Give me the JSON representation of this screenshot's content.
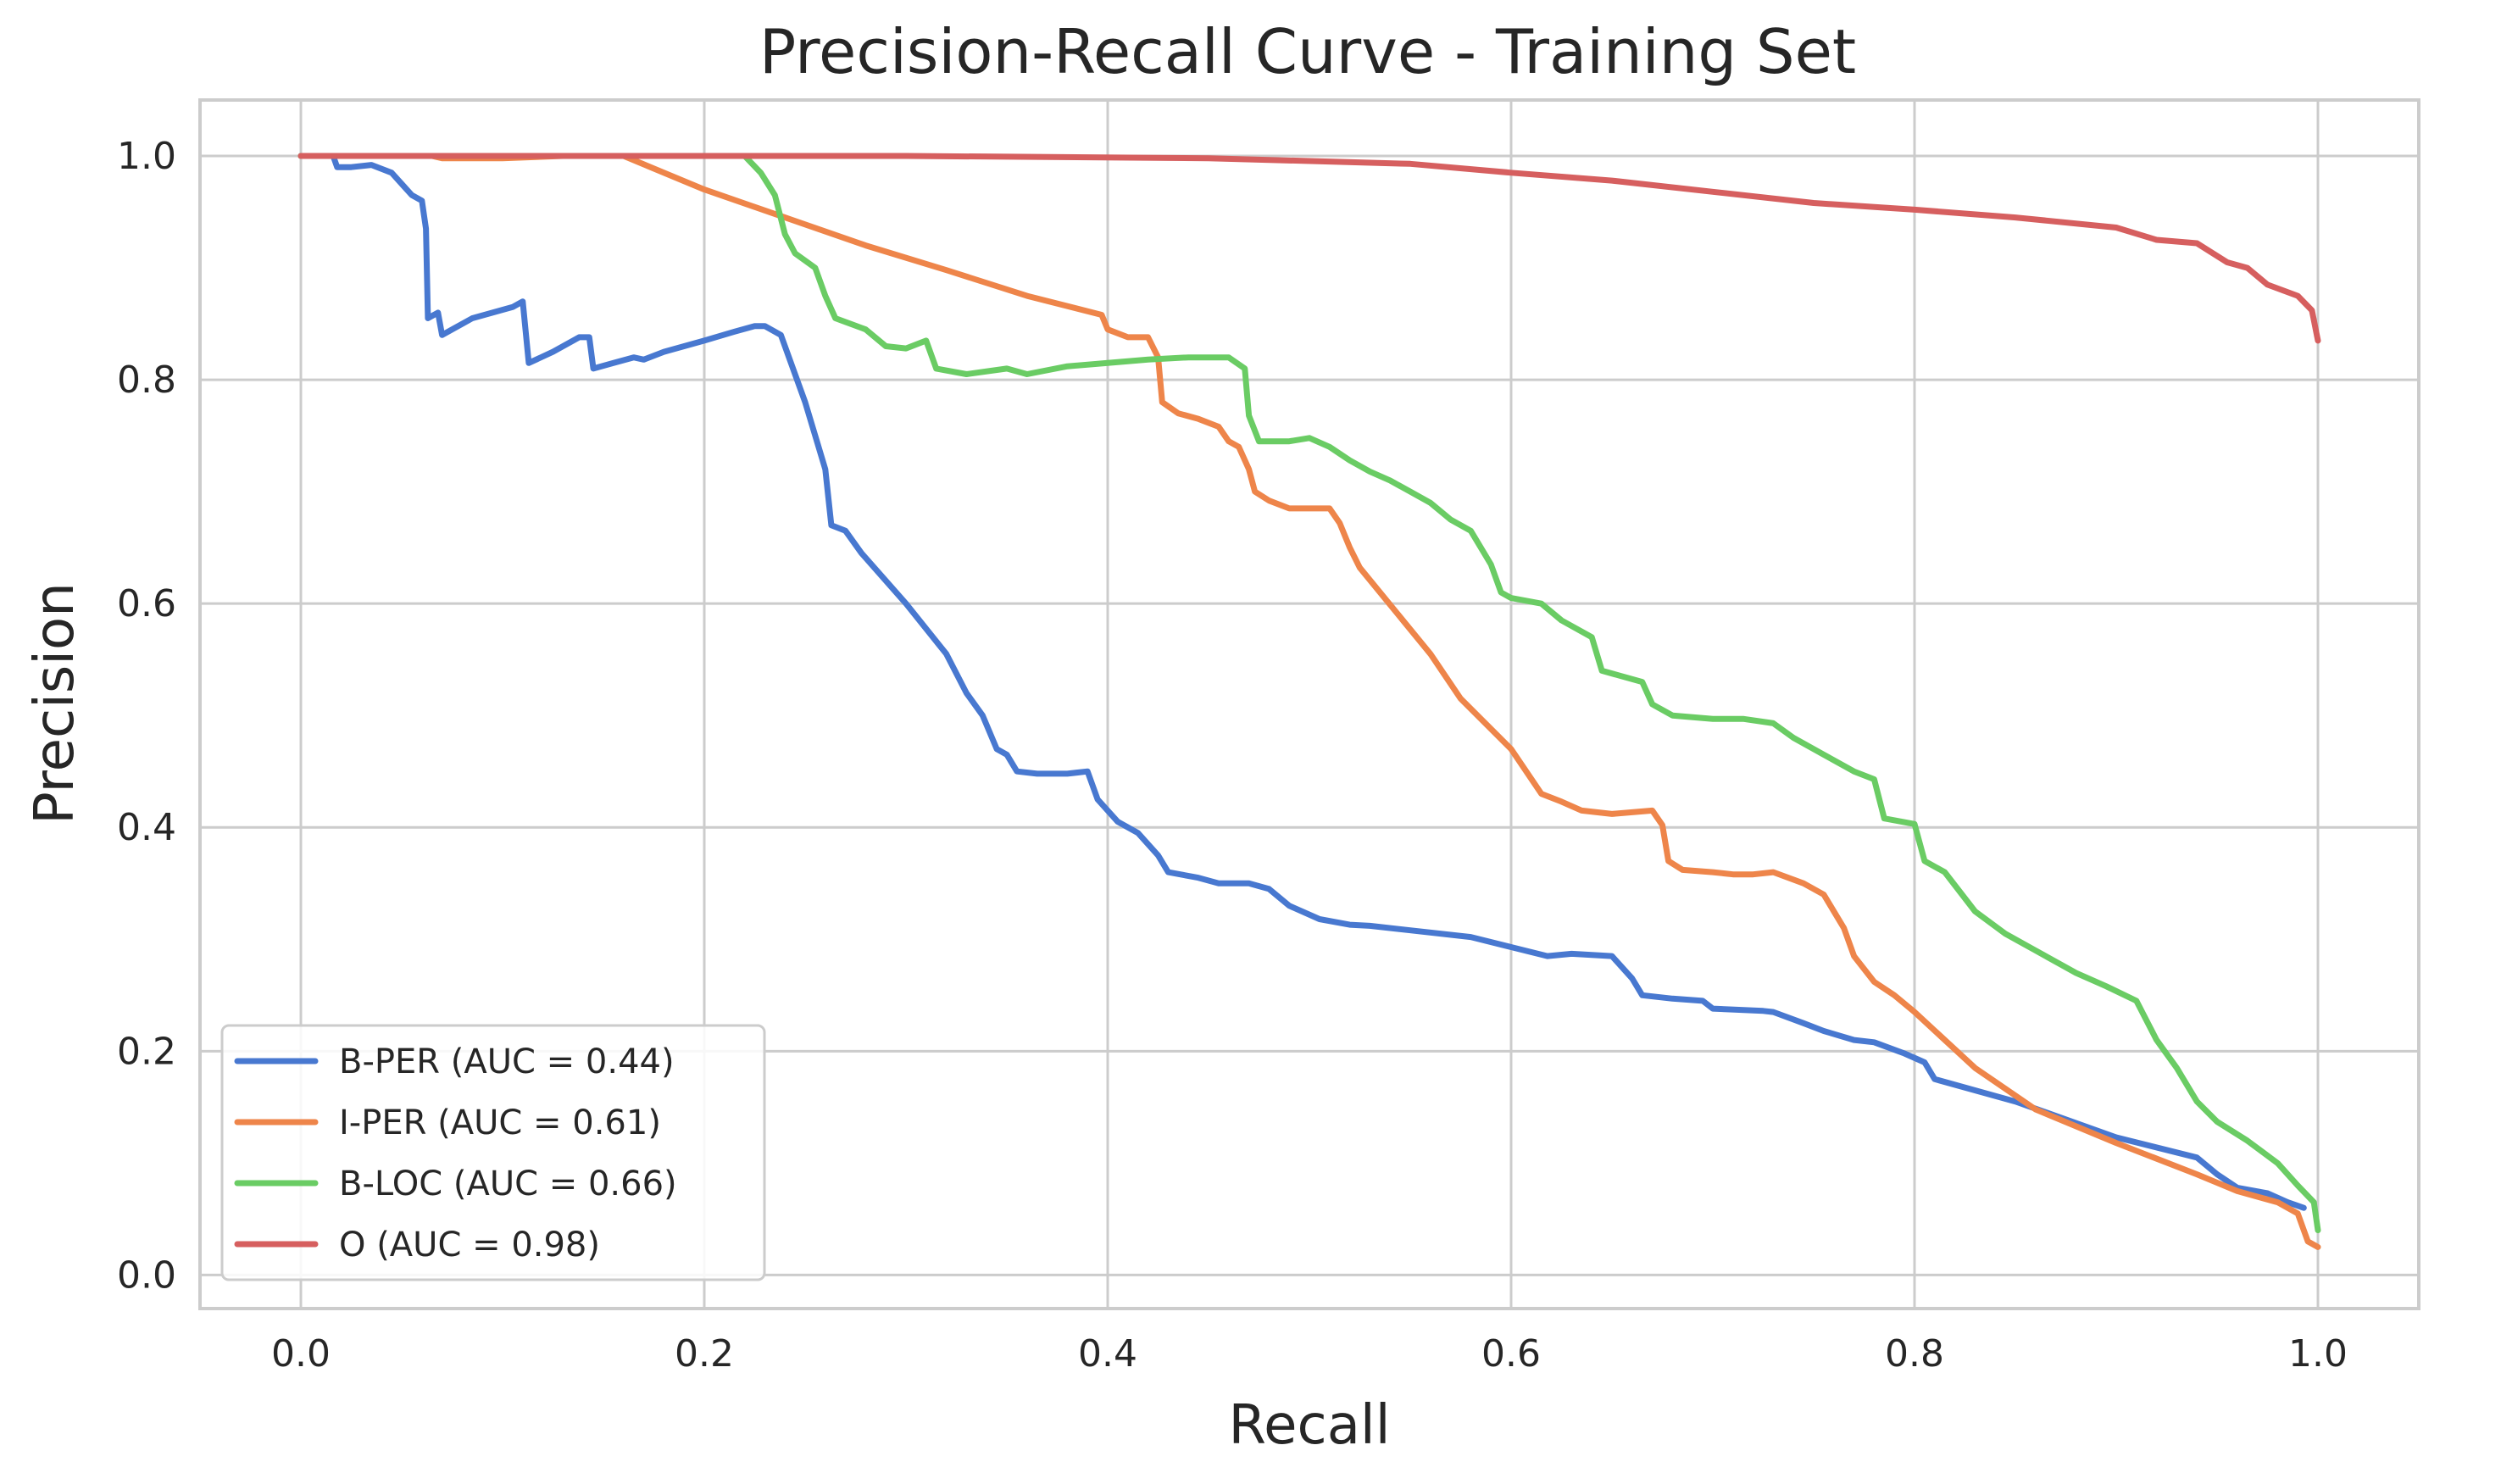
{
  "chart_data": {
    "type": "line",
    "title": "Precision-Recall Curve - Training Set",
    "xlabel": "Recall",
    "ylabel": "Precision",
    "xlim": [
      -0.05,
      1.05
    ],
    "ylim": [
      -0.03,
      1.05
    ],
    "xticks": [
      0.0,
      0.2,
      0.4,
      0.6,
      0.8,
      1.0
    ],
    "xtick_labels": [
      "0.0",
      "0.2",
      "0.4",
      "0.6",
      "0.8",
      "1.0"
    ],
    "yticks": [
      0.0,
      0.2,
      0.4,
      0.6,
      0.8,
      1.0
    ],
    "ytick_labels": [
      "0.0",
      "0.2",
      "0.4",
      "0.6",
      "0.8",
      "1.0"
    ],
    "grid": true,
    "legend_position": "lower-left",
    "series": [
      {
        "name": "B-PER (AUC = 0.44)",
        "color": "#4878d0",
        "points": [
          [
            0.0,
            1.0
          ],
          [
            0.016,
            1.0
          ],
          [
            0.018,
            0.99
          ],
          [
            0.025,
            0.99
          ],
          [
            0.035,
            0.992
          ],
          [
            0.045,
            0.985
          ],
          [
            0.05,
            0.975
          ],
          [
            0.055,
            0.965
          ],
          [
            0.06,
            0.96
          ],
          [
            0.062,
            0.935
          ],
          [
            0.063,
            0.855
          ],
          [
            0.068,
            0.86
          ],
          [
            0.07,
            0.84
          ],
          [
            0.075,
            0.845
          ],
          [
            0.085,
            0.855
          ],
          [
            0.095,
            0.86
          ],
          [
            0.105,
            0.865
          ],
          [
            0.11,
            0.87
          ],
          [
            0.113,
            0.815
          ],
          [
            0.125,
            0.825
          ],
          [
            0.138,
            0.838
          ],
          [
            0.143,
            0.838
          ],
          [
            0.145,
            0.81
          ],
          [
            0.155,
            0.815
          ],
          [
            0.165,
            0.82
          ],
          [
            0.17,
            0.818
          ],
          [
            0.18,
            0.825
          ],
          [
            0.2,
            0.835
          ],
          [
            0.215,
            0.843
          ],
          [
            0.225,
            0.848
          ],
          [
            0.23,
            0.848
          ],
          [
            0.238,
            0.84
          ],
          [
            0.25,
            0.78
          ],
          [
            0.26,
            0.72
          ],
          [
            0.263,
            0.67
          ],
          [
            0.27,
            0.665
          ],
          [
            0.278,
            0.645
          ],
          [
            0.3,
            0.6
          ],
          [
            0.32,
            0.555
          ],
          [
            0.33,
            0.52
          ],
          [
            0.338,
            0.5
          ],
          [
            0.345,
            0.47
          ],
          [
            0.35,
            0.465
          ],
          [
            0.355,
            0.45
          ],
          [
            0.365,
            0.448
          ],
          [
            0.38,
            0.448
          ],
          [
            0.39,
            0.45
          ],
          [
            0.395,
            0.425
          ],
          [
            0.405,
            0.405
          ],
          [
            0.415,
            0.395
          ],
          [
            0.425,
            0.375
          ],
          [
            0.43,
            0.36
          ],
          [
            0.445,
            0.355
          ],
          [
            0.455,
            0.35
          ],
          [
            0.47,
            0.35
          ],
          [
            0.48,
            0.345
          ],
          [
            0.49,
            0.33
          ],
          [
            0.505,
            0.318
          ],
          [
            0.52,
            0.313
          ],
          [
            0.53,
            0.312
          ],
          [
            0.55,
            0.308
          ],
          [
            0.58,
            0.302
          ],
          [
            0.6,
            0.293
          ],
          [
            0.618,
            0.285
          ],
          [
            0.63,
            0.287
          ],
          [
            0.65,
            0.285
          ],
          [
            0.66,
            0.265
          ],
          [
            0.665,
            0.25
          ],
          [
            0.68,
            0.247
          ],
          [
            0.695,
            0.245
          ],
          [
            0.7,
            0.238
          ],
          [
            0.725,
            0.236
          ],
          [
            0.73,
            0.235
          ],
          [
            0.745,
            0.225
          ],
          [
            0.755,
            0.218
          ],
          [
            0.77,
            0.21
          ],
          [
            0.78,
            0.208
          ],
          [
            0.795,
            0.198
          ],
          [
            0.805,
            0.19
          ],
          [
            0.81,
            0.175
          ],
          [
            0.85,
            0.155
          ],
          [
            0.9,
            0.123
          ],
          [
            0.94,
            0.105
          ],
          [
            0.95,
            0.09
          ],
          [
            0.96,
            0.078
          ],
          [
            0.975,
            0.073
          ],
          [
            0.985,
            0.065
          ],
          [
            0.993,
            0.06
          ]
        ]
      },
      {
        "name": "I-PER (AUC = 0.61)",
        "color": "#ee854a",
        "points": [
          [
            0.0,
            1.0
          ],
          [
            0.065,
            1.0
          ],
          [
            0.07,
            0.998
          ],
          [
            0.1,
            0.998
          ],
          [
            0.13,
            1.0
          ],
          [
            0.16,
            1.0
          ],
          [
            0.2,
            0.97
          ],
          [
            0.24,
            0.945
          ],
          [
            0.28,
            0.92
          ],
          [
            0.32,
            0.898
          ],
          [
            0.36,
            0.875
          ],
          [
            0.397,
            0.858
          ],
          [
            0.4,
            0.845
          ],
          [
            0.41,
            0.838
          ],
          [
            0.42,
            0.838
          ],
          [
            0.425,
            0.82
          ],
          [
            0.427,
            0.78
          ],
          [
            0.435,
            0.77
          ],
          [
            0.445,
            0.765
          ],
          [
            0.455,
            0.758
          ],
          [
            0.46,
            0.745
          ],
          [
            0.465,
            0.74
          ],
          [
            0.47,
            0.72
          ],
          [
            0.473,
            0.7
          ],
          [
            0.48,
            0.692
          ],
          [
            0.49,
            0.685
          ],
          [
            0.5,
            0.685
          ],
          [
            0.51,
            0.685
          ],
          [
            0.515,
            0.672
          ],
          [
            0.52,
            0.65
          ],
          [
            0.525,
            0.632
          ],
          [
            0.56,
            0.555
          ],
          [
            0.575,
            0.515
          ],
          [
            0.6,
            0.47
          ],
          [
            0.615,
            0.43
          ],
          [
            0.625,
            0.423
          ],
          [
            0.635,
            0.415
          ],
          [
            0.65,
            0.412
          ],
          [
            0.67,
            0.415
          ],
          [
            0.675,
            0.402
          ],
          [
            0.678,
            0.37
          ],
          [
            0.685,
            0.362
          ],
          [
            0.7,
            0.36
          ],
          [
            0.71,
            0.358
          ],
          [
            0.72,
            0.358
          ],
          [
            0.73,
            0.36
          ],
          [
            0.745,
            0.35
          ],
          [
            0.755,
            0.34
          ],
          [
            0.765,
            0.31
          ],
          [
            0.77,
            0.285
          ],
          [
            0.78,
            0.262
          ],
          [
            0.79,
            0.25
          ],
          [
            0.8,
            0.235
          ],
          [
            0.83,
            0.185
          ],
          [
            0.86,
            0.148
          ],
          [
            0.9,
            0.118
          ],
          [
            0.94,
            0.09
          ],
          [
            0.96,
            0.075
          ],
          [
            0.98,
            0.065
          ],
          [
            0.99,
            0.055
          ],
          [
            0.995,
            0.03
          ],
          [
            1.0,
            0.025
          ]
        ]
      },
      {
        "name": "B-LOC (AUC = 0.66)",
        "color": "#6acc64",
        "points": [
          [
            0.0,
            1.0
          ],
          [
            0.2,
            1.0
          ],
          [
            0.22,
            1.0
          ],
          [
            0.228,
            0.985
          ],
          [
            0.235,
            0.965
          ],
          [
            0.24,
            0.93
          ],
          [
            0.245,
            0.913
          ],
          [
            0.255,
            0.9
          ],
          [
            0.26,
            0.875
          ],
          [
            0.265,
            0.855
          ],
          [
            0.28,
            0.845
          ],
          [
            0.29,
            0.83
          ],
          [
            0.3,
            0.828
          ],
          [
            0.31,
            0.835
          ],
          [
            0.315,
            0.81
          ],
          [
            0.33,
            0.805
          ],
          [
            0.35,
            0.81
          ],
          [
            0.36,
            0.805
          ],
          [
            0.38,
            0.812
          ],
          [
            0.4,
            0.815
          ],
          [
            0.42,
            0.818
          ],
          [
            0.44,
            0.82
          ],
          [
            0.46,
            0.82
          ],
          [
            0.468,
            0.81
          ],
          [
            0.47,
            0.768
          ],
          [
            0.475,
            0.745
          ],
          [
            0.49,
            0.745
          ],
          [
            0.5,
            0.748
          ],
          [
            0.51,
            0.74
          ],
          [
            0.52,
            0.728
          ],
          [
            0.53,
            0.718
          ],
          [
            0.54,
            0.71
          ],
          [
            0.55,
            0.7
          ],
          [
            0.56,
            0.69
          ],
          [
            0.57,
            0.675
          ],
          [
            0.58,
            0.665
          ],
          [
            0.59,
            0.635
          ],
          [
            0.595,
            0.61
          ],
          [
            0.6,
            0.605
          ],
          [
            0.615,
            0.6
          ],
          [
            0.625,
            0.585
          ],
          [
            0.64,
            0.57
          ],
          [
            0.645,
            0.54
          ],
          [
            0.655,
            0.535
          ],
          [
            0.665,
            0.53
          ],
          [
            0.67,
            0.51
          ],
          [
            0.68,
            0.5
          ],
          [
            0.7,
            0.497
          ],
          [
            0.715,
            0.497
          ],
          [
            0.73,
            0.493
          ],
          [
            0.74,
            0.48
          ],
          [
            0.755,
            0.465
          ],
          [
            0.77,
            0.45
          ],
          [
            0.78,
            0.443
          ],
          [
            0.785,
            0.408
          ],
          [
            0.8,
            0.403
          ],
          [
            0.805,
            0.37
          ],
          [
            0.815,
            0.36
          ],
          [
            0.83,
            0.325
          ],
          [
            0.845,
            0.305
          ],
          [
            0.86,
            0.29
          ],
          [
            0.88,
            0.27
          ],
          [
            0.895,
            0.258
          ],
          [
            0.91,
            0.245
          ],
          [
            0.92,
            0.21
          ],
          [
            0.93,
            0.185
          ],
          [
            0.94,
            0.155
          ],
          [
            0.95,
            0.137
          ],
          [
            0.965,
            0.12
          ],
          [
            0.98,
            0.1
          ],
          [
            0.99,
            0.08
          ],
          [
            0.998,
            0.065
          ],
          [
            1.0,
            0.04
          ]
        ]
      },
      {
        "name": "O (AUC = 0.98)",
        "color": "#d65f5f",
        "points": [
          [
            0.0,
            1.0
          ],
          [
            0.3,
            1.0
          ],
          [
            0.45,
            0.998
          ],
          [
            0.55,
            0.993
          ],
          [
            0.6,
            0.985
          ],
          [
            0.65,
            0.978
          ],
          [
            0.7,
            0.968
          ],
          [
            0.75,
            0.958
          ],
          [
            0.8,
            0.952
          ],
          [
            0.85,
            0.945
          ],
          [
            0.9,
            0.936
          ],
          [
            0.92,
            0.925
          ],
          [
            0.94,
            0.922
          ],
          [
            0.955,
            0.905
          ],
          [
            0.965,
            0.9
          ],
          [
            0.975,
            0.885
          ],
          [
            0.99,
            0.875
          ],
          [
            0.997,
            0.862
          ],
          [
            1.0,
            0.835
          ]
        ]
      }
    ]
  }
}
